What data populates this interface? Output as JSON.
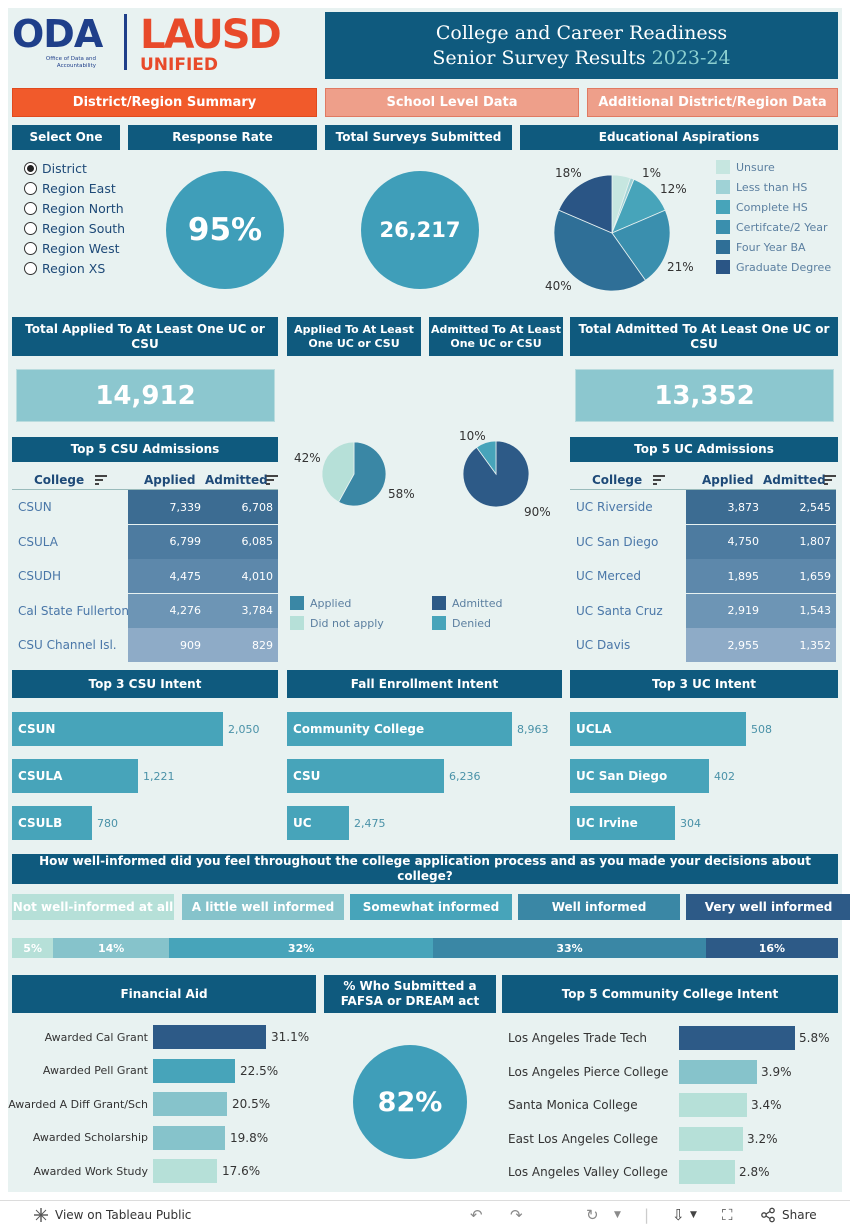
{
  "logo": {
    "oda": "ODA",
    "oda_sub": "Office of Data and Accountability",
    "lausd_top": "LAUSD",
    "lausd_bottom": "UNIFIED"
  },
  "title": {
    "line1": "College and Career Readiness",
    "line2": "Senior Survey Results",
    "year": "2023-24"
  },
  "tabs": [
    "District/Region Summary",
    "School Level Data",
    "Additional District/Region Data"
  ],
  "headers": {
    "select_one": "Select One",
    "response_rate": "Response Rate",
    "total_surveys": "Total Surveys Submitted",
    "edu_aspirations": "Educational Aspirations",
    "total_applied": "Total Applied To At Least One UC or CSU",
    "applied_pie": "Applied To At Least One UC or CSU",
    "admitted_pie": "Admitted To At Least One UC or CSU",
    "total_admitted": "Total Admitted To At Least One UC or CSU",
    "top5_csu": "Top 5 CSU Admissions",
    "top5_uc": "Top 5 UC Admissions",
    "top3_csu_intent": "Top 3 CSU Intent",
    "fall_intent": "Fall Enrollment Intent",
    "top3_uc_intent": "Top 3 UC Intent",
    "informed_q": "How well-informed did you feel throughout the college application process and as you made your decisions about college?",
    "financial_aid": "Financial Aid",
    "fafsa": "% Who Submitted a FAFSA or DREAM act",
    "top5_cc": "Top 5 Community College Intent"
  },
  "regions": [
    "District",
    "Region East",
    "Region North",
    "Region South",
    "Region West",
    "Region XS"
  ],
  "selected_region": "District",
  "response_rate": "95%",
  "total_surveys": "26,217",
  "aspirations": {
    "legend": [
      "Unsure",
      "Less than HS",
      "Complete HS",
      "Certifcate/2 Year",
      "Four Year BA",
      "Graduate Degree"
    ],
    "labels": [
      "1%",
      "12%",
      "21%",
      "40%",
      "18%"
    ]
  },
  "total_applied": "14,912",
  "total_admitted": "13,352",
  "pie_applied": {
    "labels": [
      "42%",
      "58%"
    ],
    "values": [
      58,
      42
    ]
  },
  "pie_admitted": {
    "labels": [
      "10%",
      "90%"
    ],
    "values": [
      90,
      10
    ]
  },
  "pie_legend": [
    "Applied",
    "Did not apply",
    "Admitted",
    "Denied"
  ],
  "table_cols": {
    "college": "College",
    "applied": "Applied",
    "admitted": "Admitted"
  },
  "csu_admissions": [
    {
      "college": "CSUN",
      "applied": "7,339",
      "admitted": "6,708"
    },
    {
      "college": "CSULA",
      "applied": "6,799",
      "admitted": "6,085"
    },
    {
      "college": "CSUDH",
      "applied": "4,475",
      "admitted": "4,010"
    },
    {
      "college": "Cal State Fullerton",
      "applied": "4,276",
      "admitted": "3,784"
    },
    {
      "college": "CSU Channel Isl.",
      "applied": "909",
      "admitted": "829"
    }
  ],
  "uc_admissions": [
    {
      "college": "UC Riverside",
      "applied": "3,873",
      "admitted": "2,545"
    },
    {
      "college": "UC San Diego",
      "applied": "4,750",
      "admitted": "1,807"
    },
    {
      "college": "UC Merced",
      "applied": "1,895",
      "admitted": "1,659"
    },
    {
      "college": "UC Santa Cruz",
      "applied": "2,919",
      "admitted": "1,543"
    },
    {
      "college": "UC Davis",
      "applied": "2,955",
      "admitted": "1,352"
    }
  ],
  "csu_intent": [
    {
      "name": "CSUN",
      "value": 2050,
      "label": "2,050"
    },
    {
      "name": "CSULA",
      "value": 1221,
      "label": "1,221"
    },
    {
      "name": "CSULB",
      "value": 780,
      "label": "780"
    }
  ],
  "fall_intent": [
    {
      "name": "Community College",
      "value": 8963,
      "label": "8,963"
    },
    {
      "name": "CSU",
      "value": 6236,
      "label": "6,236"
    },
    {
      "name": "UC",
      "value": 2475,
      "label": "2,475"
    }
  ],
  "uc_intent": [
    {
      "name": "UCLA",
      "value": 508,
      "label": "508"
    },
    {
      "name": "UC San Diego",
      "value": 402,
      "label": "402"
    },
    {
      "name": "UC Irvine",
      "value": 304,
      "label": "304"
    }
  ],
  "informed_categories": [
    "Not well-informed at all",
    "A little well informed",
    "Somewhat informed",
    "Well informed",
    "Very well informed"
  ],
  "informed_segments": [
    {
      "label": "5%",
      "value": 5
    },
    {
      "label": "14%",
      "value": 14
    },
    {
      "label": "32%",
      "value": 32
    },
    {
      "label": "33%",
      "value": 33
    },
    {
      "label": "16%",
      "value": 16
    }
  ],
  "colors": {
    "c1": "#b6e0d8",
    "c2": "#86c3cb",
    "c3": "#47a4ba",
    "c4": "#3a87a5",
    "c5": "#2d5a87"
  },
  "financial_aid": [
    {
      "label": "Awarded Cal Grant",
      "value": 31.1,
      "text": "31.1%"
    },
    {
      "label": "Awarded Pell Grant",
      "value": 22.5,
      "text": "22.5%"
    },
    {
      "label": "Awarded A Diff Grant/Sch",
      "value": 20.5,
      "text": "20.5%"
    },
    {
      "label": "Awarded Scholarship",
      "value": 19.8,
      "text": "19.8%"
    },
    {
      "label": "Awarded Work Study",
      "value": 17.6,
      "text": "17.6%"
    }
  ],
  "fafsa_pct": "82%",
  "community_colleges": [
    {
      "label": "Los Angeles Trade Tech",
      "value": 5.8,
      "text": "5.8%"
    },
    {
      "label": "Los Angeles Pierce College",
      "value": 3.9,
      "text": "3.9%"
    },
    {
      "label": "Santa Monica College",
      "value": 3.4,
      "text": "3.4%"
    },
    {
      "label": "East Los Angeles College",
      "value": 3.2,
      "text": "3.2%"
    },
    {
      "label": "Los Angeles Valley College",
      "value": 2.8,
      "text": "2.8%"
    }
  ],
  "footer": {
    "view_on": "View on Tableau Public",
    "share": "Share"
  }
}
